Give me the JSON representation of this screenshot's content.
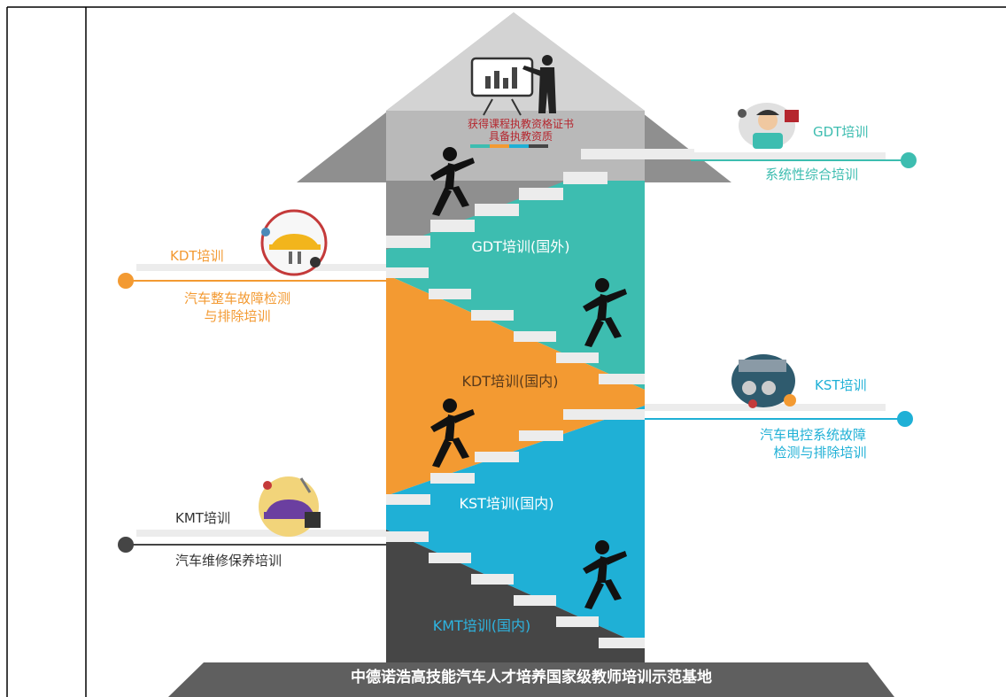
{
  "colors": {
    "gdt": "#3dbdb0",
    "kdt": "#f39a32",
    "kst": "#1fb0d6",
    "kmt": "#454545",
    "roof": "#8d8d8d",
    "base": "#5f5f5f"
  },
  "roof": {
    "line1": "获得课程执教资格证书",
    "line2": "具备执教资质"
  },
  "steps": [
    {
      "key": "gdt",
      "label": "GDT培训(国外)"
    },
    {
      "key": "kdt",
      "label": "KDT培训(国内)"
    },
    {
      "key": "kst",
      "label": "KST培训(国内)"
    },
    {
      "key": "kmt",
      "label": "KMT培训(国内)"
    }
  ],
  "callouts": {
    "gdt": {
      "title": "GDT培训",
      "line1": "系统性综合培训",
      "icon": "technician-icon"
    },
    "kdt": {
      "title": "KDT培训",
      "line1": "汽车整车故障检测",
      "line2": "与排除培训",
      "icon": "car-lift-icon"
    },
    "kst": {
      "title": "KST培训",
      "line1": "汽车电控系统故障",
      "line2": "检测与排除培训",
      "icon": "engine-gears-icon"
    },
    "kmt": {
      "title": "KMT培训",
      "line1": "汽车维修保养培训",
      "icon": "car-repair-icon"
    }
  },
  "base": {
    "title": "中德诺浩高技能汽车人才培养国家级教师培训示范基地"
  }
}
